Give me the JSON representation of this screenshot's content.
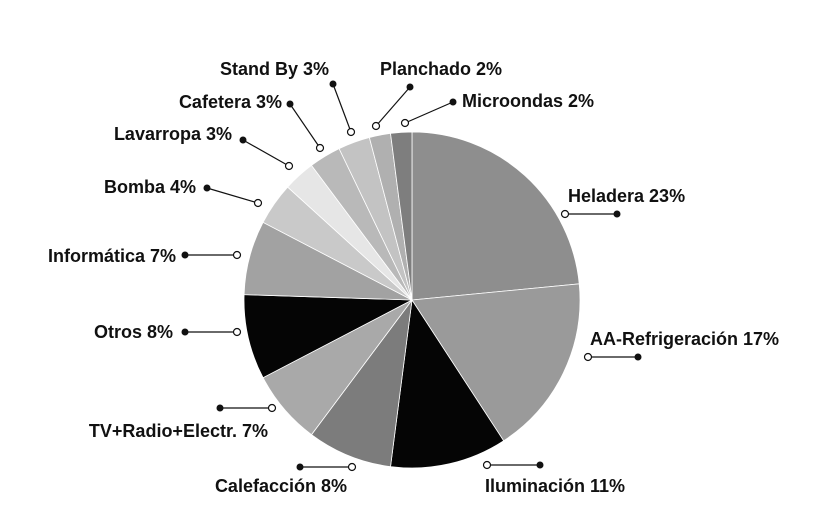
{
  "chart_data": {
    "type": "pie",
    "categories": [
      "Heladera",
      "AA-Refrigeración",
      "Iluminación",
      "Calefacción",
      "TV+Radio+Electr.",
      "Otros",
      "Informática",
      "Bomba",
      "Lavarropa",
      "Cafetera",
      "Stand By",
      "Planchado",
      "Microondas"
    ],
    "values": [
      23,
      17,
      11,
      8,
      7,
      8,
      7,
      4,
      3,
      3,
      3,
      2,
      2
    ],
    "value_labels": [
      "23%",
      "17%",
      "11%",
      "8%",
      "7%",
      "8%",
      "7%",
      "4%",
      "3%",
      "3%",
      "3%",
      "2%",
      "2%"
    ],
    "colors": [
      "#8e8e8e",
      "#9a9a9a",
      "#050505",
      "#7c7c7c",
      "#a9a9a9",
      "#050505",
      "#a2a2a2",
      "#c9c9c9",
      "#e6e6e6",
      "#b9b9b9",
      "#c3c3c3",
      "#b0b0b0",
      "#7e7e7e"
    ]
  }
}
